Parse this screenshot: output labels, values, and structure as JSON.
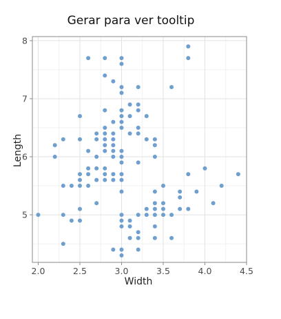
{
  "chart_data": {
    "type": "scatter",
    "title": "Gerar para ver tooltip",
    "xlabel": "Width",
    "ylabel": "Length",
    "xlim": [
      1.93,
      4.5
    ],
    "ylim": [
      4.18,
      8.07
    ],
    "xticks": [
      2.0,
      2.5,
      3.0,
      3.5,
      4.0,
      4.5
    ],
    "xtick_labels": [
      "2.0",
      "2.5",
      "3.0",
      "3.5",
      "4.0",
      "4.5"
    ],
    "yticks": [
      5,
      6,
      7,
      8
    ],
    "ytick_labels": [
      "5",
      "6",
      "7",
      "8"
    ],
    "grid": true,
    "legend": "none",
    "point_color": "#6e9fcf",
    "series": [
      {
        "points": [
          [
            2.0,
            5.0
          ],
          [
            2.2,
            6.0
          ],
          [
            2.2,
            6.2
          ],
          [
            2.3,
            4.5
          ],
          [
            2.3,
            5.0
          ],
          [
            2.3,
            5.5
          ],
          [
            2.3,
            6.3
          ],
          [
            2.4,
            4.9
          ],
          [
            2.4,
            5.5
          ],
          [
            2.5,
            4.9
          ],
          [
            2.5,
            5.1
          ],
          [
            2.5,
            5.5
          ],
          [
            2.5,
            5.6
          ],
          [
            2.5,
            5.7
          ],
          [
            2.5,
            6.3
          ],
          [
            2.5,
            6.7
          ],
          [
            2.6,
            5.5
          ],
          [
            2.6,
            5.7
          ],
          [
            2.6,
            5.8
          ],
          [
            2.6,
            6.1
          ],
          [
            2.6,
            7.7
          ],
          [
            2.7,
            5.2
          ],
          [
            2.7,
            5.6
          ],
          [
            2.7,
            5.8
          ],
          [
            2.7,
            6.0
          ],
          [
            2.7,
            6.3
          ],
          [
            2.7,
            6.4
          ],
          [
            2.8,
            5.6
          ],
          [
            2.8,
            5.7
          ],
          [
            2.8,
            5.8
          ],
          [
            2.8,
            6.1
          ],
          [
            2.8,
            6.2
          ],
          [
            2.8,
            6.3
          ],
          [
            2.8,
            6.4
          ],
          [
            2.8,
            6.5
          ],
          [
            2.8,
            6.8
          ],
          [
            2.8,
            7.4
          ],
          [
            2.8,
            7.7
          ],
          [
            2.9,
            4.4
          ],
          [
            2.9,
            5.6
          ],
          [
            2.9,
            5.7
          ],
          [
            2.9,
            6.0
          ],
          [
            2.9,
            6.1
          ],
          [
            2.9,
            6.2
          ],
          [
            2.9,
            6.3
          ],
          [
            2.9,
            6.4
          ],
          [
            2.9,
            6.6
          ],
          [
            2.9,
            7.3
          ],
          [
            3.0,
            4.3
          ],
          [
            3.0,
            4.4
          ],
          [
            3.0,
            4.8
          ],
          [
            3.0,
            4.9
          ],
          [
            3.0,
            5.0
          ],
          [
            3.0,
            5.4
          ],
          [
            3.0,
            5.6
          ],
          [
            3.0,
            5.7
          ],
          [
            3.0,
            5.9
          ],
          [
            3.0,
            6.0
          ],
          [
            3.0,
            6.1
          ],
          [
            3.0,
            6.5
          ],
          [
            3.0,
            6.6
          ],
          [
            3.0,
            6.7
          ],
          [
            3.0,
            6.8
          ],
          [
            3.0,
            7.1
          ],
          [
            3.0,
            7.2
          ],
          [
            3.0,
            7.6
          ],
          [
            3.0,
            7.7
          ],
          [
            3.1,
            4.6
          ],
          [
            3.1,
            4.8
          ],
          [
            3.1,
            4.9
          ],
          [
            3.1,
            6.4
          ],
          [
            3.1,
            6.7
          ],
          [
            3.1,
            6.9
          ],
          [
            3.2,
            4.4
          ],
          [
            3.2,
            4.6
          ],
          [
            3.2,
            4.7
          ],
          [
            3.2,
            5.0
          ],
          [
            3.2,
            5.9
          ],
          [
            3.2,
            6.4
          ],
          [
            3.2,
            6.5
          ],
          [
            3.2,
            6.8
          ],
          [
            3.2,
            6.9
          ],
          [
            3.2,
            7.2
          ],
          [
            3.3,
            5.0
          ],
          [
            3.3,
            5.1
          ],
          [
            3.3,
            6.3
          ],
          [
            3.3,
            6.7
          ],
          [
            3.4,
            4.6
          ],
          [
            3.4,
            4.8
          ],
          [
            3.4,
            5.0
          ],
          [
            3.4,
            5.1
          ],
          [
            3.4,
            5.2
          ],
          [
            3.4,
            5.4
          ],
          [
            3.4,
            6.0
          ],
          [
            3.4,
            6.2
          ],
          [
            3.4,
            6.3
          ],
          [
            3.5,
            5.0
          ],
          [
            3.5,
            5.1
          ],
          [
            3.5,
            5.2
          ],
          [
            3.5,
            5.5
          ],
          [
            3.6,
            4.6
          ],
          [
            3.6,
            5.0
          ],
          [
            3.6,
            7.2
          ],
          [
            3.7,
            5.1
          ],
          [
            3.7,
            5.3
          ],
          [
            3.7,
            5.4
          ],
          [
            3.8,
            5.1
          ],
          [
            3.8,
            5.7
          ],
          [
            3.8,
            7.7
          ],
          [
            3.8,
            7.9
          ],
          [
            3.9,
            5.4
          ],
          [
            4.0,
            5.8
          ],
          [
            4.1,
            5.2
          ],
          [
            4.2,
            5.5
          ],
          [
            4.4,
            5.7
          ]
        ]
      }
    ]
  }
}
